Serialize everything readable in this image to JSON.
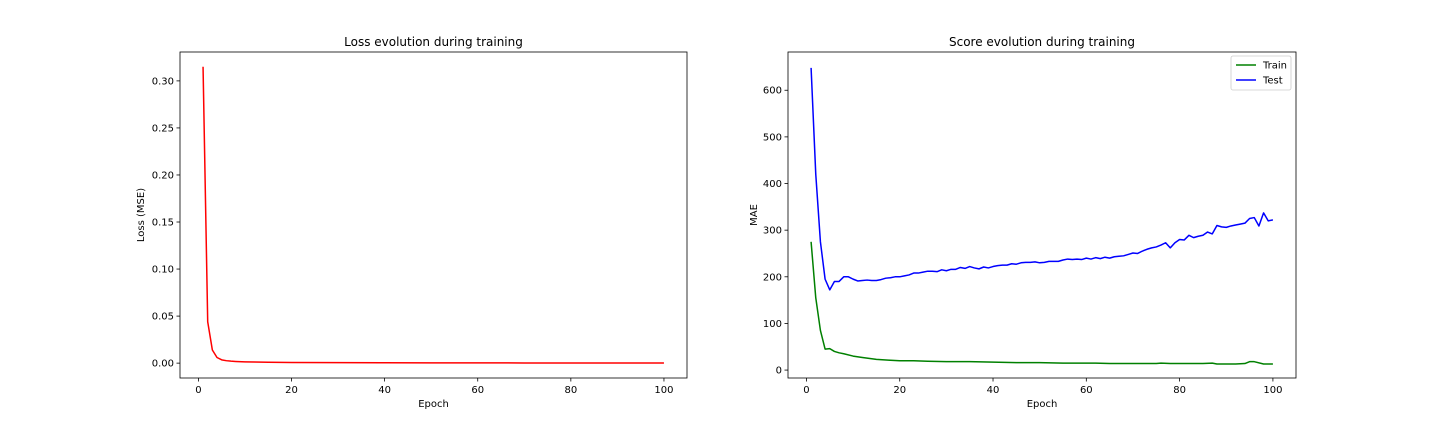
{
  "chart_data": [
    {
      "type": "line",
      "title": "Loss evolution during training",
      "xlabel": "Epoch",
      "ylabel": "Loss (MSE)",
      "xlim": [
        -3.95,
        104.95
      ],
      "ylim": [
        -0.0158,
        0.3307
      ],
      "xticks": [
        0,
        20,
        40,
        60,
        80,
        100
      ],
      "yticks": [
        0.0,
        0.05,
        0.1,
        0.15,
        0.2,
        0.25,
        0.3
      ],
      "ytick_labels": [
        "0.00",
        "0.05",
        "0.10",
        "0.15",
        "0.20",
        "0.25",
        "0.30"
      ],
      "grid": false,
      "legend": null,
      "series": [
        {
          "color": "#ff0000",
          "x": [
            1,
            2,
            3,
            4,
            5,
            6,
            7,
            8,
            10,
            12,
            15,
            20,
            30,
            40,
            50,
            60,
            70,
            80,
            90,
            100
          ],
          "values": [
            0.315,
            0.044,
            0.014,
            0.006,
            0.0035,
            0.0026,
            0.0021,
            0.0018,
            0.0014,
            0.0012,
            0.0009,
            0.0007,
            0.0005,
            0.0004,
            0.0003,
            0.0003,
            0.0002,
            0.0002,
            0.0001,
            0.0001
          ]
        }
      ]
    },
    {
      "type": "line",
      "title": "Score evolution during training",
      "xlabel": "Epoch",
      "ylabel": "MAE",
      "xlim": [
        -3.95,
        104.95
      ],
      "ylim": [
        -17,
        682
      ],
      "xticks": [
        0,
        20,
        40,
        60,
        80,
        100
      ],
      "yticks": [
        0,
        100,
        200,
        300,
        400,
        500,
        600
      ],
      "ytick_labels": [
        "0",
        "100",
        "200",
        "300",
        "400",
        "500",
        "600"
      ],
      "grid": false,
      "legend": "top-right",
      "series": [
        {
          "name": "Train",
          "color": "#008000",
          "x": [
            1,
            2,
            3,
            4,
            5,
            6,
            7,
            8,
            10,
            12,
            15,
            18,
            20,
            23,
            26,
            30,
            35,
            40,
            45,
            50,
            55,
            60,
            62,
            65,
            70,
            75,
            76,
            78,
            80,
            85,
            87,
            88,
            90,
            92,
            94,
            95,
            96,
            98,
            100
          ],
          "values": [
            275,
            155,
            85,
            45,
            46,
            40,
            37,
            35,
            30,
            27,
            23,
            21,
            20,
            20,
            19,
            18,
            18,
            17,
            16,
            16,
            15,
            15,
            15,
            14,
            14,
            14,
            15,
            14,
            14,
            14,
            15,
            13,
            13,
            13,
            14,
            18,
            18,
            13,
            13
          ]
        },
        {
          "name": "Test",
          "color": "#0000ff",
          "x": [
            1,
            2,
            3,
            4,
            5,
            6,
            7,
            8,
            9,
            10,
            11,
            12,
            13,
            14,
            15,
            16,
            17,
            18,
            19,
            20,
            21,
            22,
            23,
            24,
            25,
            26,
            27,
            28,
            29,
            30,
            31,
            32,
            33,
            34,
            35,
            36,
            37,
            38,
            39,
            40,
            41,
            42,
            43,
            44,
            45,
            46,
            47,
            48,
            49,
            50,
            51,
            52,
            53,
            54,
            55,
            56,
            57,
            58,
            59,
            60,
            61,
            62,
            63,
            64,
            65,
            66,
            67,
            68,
            69,
            70,
            71,
            72,
            73,
            74,
            75,
            76,
            77,
            78,
            79,
            80,
            81,
            82,
            83,
            84,
            85,
            86,
            87,
            88,
            89,
            90,
            91,
            92,
            93,
            94,
            95,
            96,
            97,
            98,
            99,
            100
          ],
          "values": [
            648,
            420,
            275,
            195,
            172,
            190,
            190,
            200,
            200,
            195,
            191,
            192,
            193,
            192,
            192,
            194,
            197,
            198,
            200,
            200,
            202,
            204,
            208,
            208,
            210,
            212,
            212,
            211,
            215,
            213,
            216,
            216,
            220,
            218,
            222,
            219,
            217,
            221,
            219,
            222,
            224,
            225,
            225,
            228,
            227,
            230,
            231,
            231,
            232,
            230,
            231,
            233,
            233,
            233,
            236,
            238,
            237,
            238,
            237,
            240,
            238,
            241,
            239,
            242,
            240,
            243,
            244,
            245,
            248,
            251,
            250,
            255,
            259,
            262,
            264,
            268,
            273,
            262,
            273,
            280,
            279,
            289,
            284,
            287,
            289,
            296,
            292,
            310,
            307,
            306,
            309,
            311,
            313,
            315,
            325,
            327,
            309,
            337,
            320,
            322
          ]
        }
      ]
    }
  ]
}
